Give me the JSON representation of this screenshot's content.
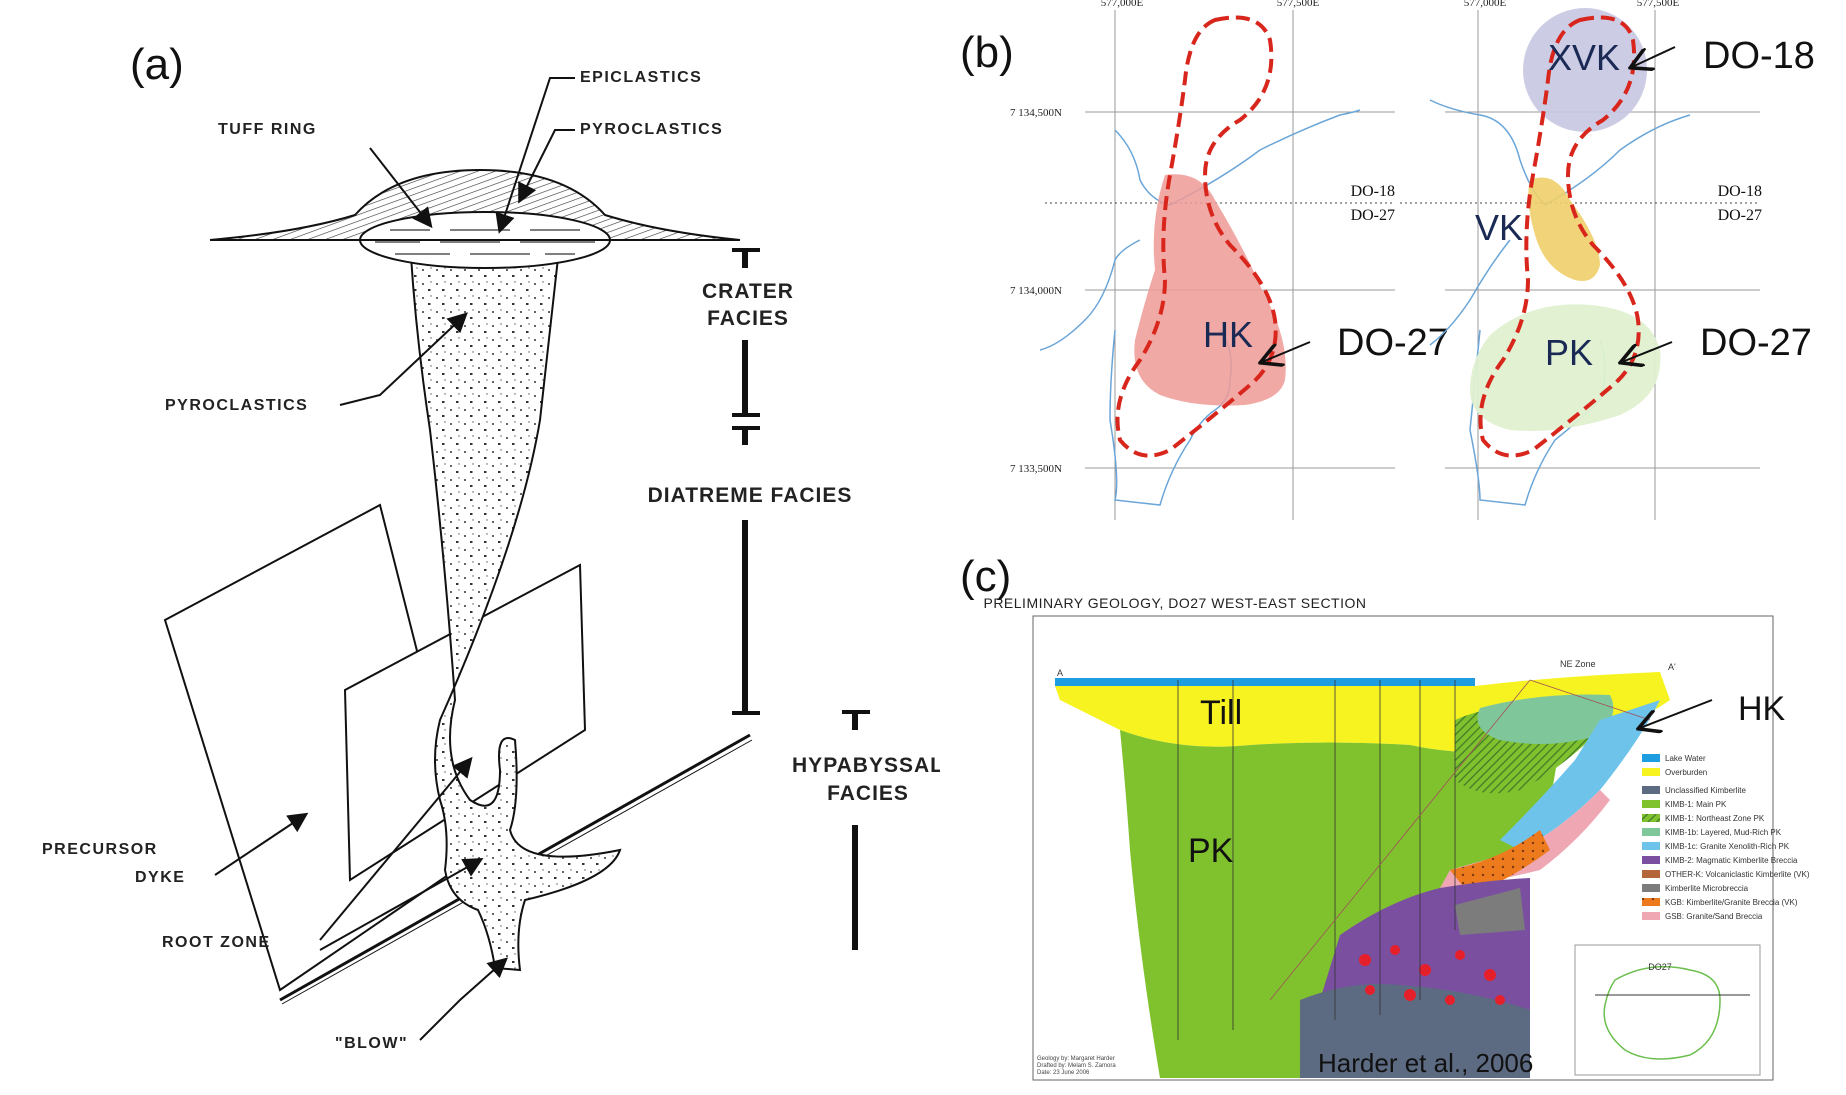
{
  "panel_a": {
    "letter": "(a)",
    "labels": {
      "epiclastics": "EPICLASTICS",
      "tuff_ring": "TUFF RING",
      "pyroclastics_top": "PYROCLASTICS",
      "pyroclastics_mid": "PYROCLASTICS",
      "precursor": "PRECURSOR",
      "dyke": "DYKE",
      "root_zone": "ROOT ZONE",
      "blow": "\"BLOW\""
    },
    "facies": {
      "crater_1": "CRATER",
      "crater_2": "FACIES",
      "diatreme": "DIATREME FACIES",
      "hypabyssal_1": "HYPABYSSAL",
      "hypabyssal_2": "FACIES"
    }
  },
  "panel_b": {
    "letter": "(b)",
    "grid": {
      "e1": "577,000E",
      "e2": "577,500E",
      "n1": "7 134,500N",
      "n2": "7 134,000N",
      "n3": "7 133,500N"
    },
    "boundary_top": "DO-18",
    "boundary_bottom": "DO-27",
    "left_map": {
      "unit": "HK",
      "pointer": "DO-27"
    },
    "right_map": {
      "unit_top": "XVK",
      "unit_mid": "VK",
      "unit_bottom": "PK",
      "pointer_top": "DO-18",
      "pointer_bottom": "DO-27"
    },
    "colors": {
      "hk": "#ef9a96",
      "xvk": "#c8c6e2",
      "vk": "#f0cf6a",
      "pk": "#dff0d0",
      "boundary": "#d8261c",
      "water": "#6aa5d8"
    }
  },
  "panel_c": {
    "letter": "(c)",
    "title": "PRELIMINARY GEOLOGY, DO27 WEST-EAST SECTION",
    "ne_zone": "NE Zone",
    "section_a": "A",
    "section_a_prime": "A'",
    "till": "Till",
    "pk": "PK",
    "hk": "HK",
    "credit": "Harder et al., 2006",
    "inset_title": "DO27",
    "footer_lines": [
      "Geology by: Margaret Harder",
      "Drafted by: Melam S. Zamora",
      "Date: 23 June 2006"
    ],
    "legend": [
      {
        "label": "Lake Water",
        "color": "#1e9ee0"
      },
      {
        "label": "Overburden",
        "color": "#f7f321"
      },
      {
        "label": "Unclassified Kimberlite",
        "color": "#5c6b82"
      },
      {
        "label": "KIMB-1: Main PK",
        "color": "#80c12e"
      },
      {
        "label": "KIMB-1: Northeast Zone PK",
        "color": "#3f7a28"
      },
      {
        "label": "KIMB-1b: Layered, Mud-Rich PK",
        "color": "#7fc79a"
      },
      {
        "label": "KIMB-1c: Granite Xenolith-Rich PK",
        "color": "#6ec3ea"
      },
      {
        "label": "KIMB-2: Magmatic Kimberlite Breccia",
        "color": "#7a4fa0"
      },
      {
        "label": "OTHER-K: Volcaniclastic Kimberlite (VK)",
        "color": "#b5653a"
      },
      {
        "label": "Kimberlite Microbreccia",
        "color": "#7c7c7c"
      },
      {
        "label": "KGB: Kimberlite/Granite Breccia (VK)",
        "color": "#ee7a1e"
      },
      {
        "label": "GSB: Granite/Sand Breccia",
        "color": "#f0a7b4"
      }
    ]
  }
}
